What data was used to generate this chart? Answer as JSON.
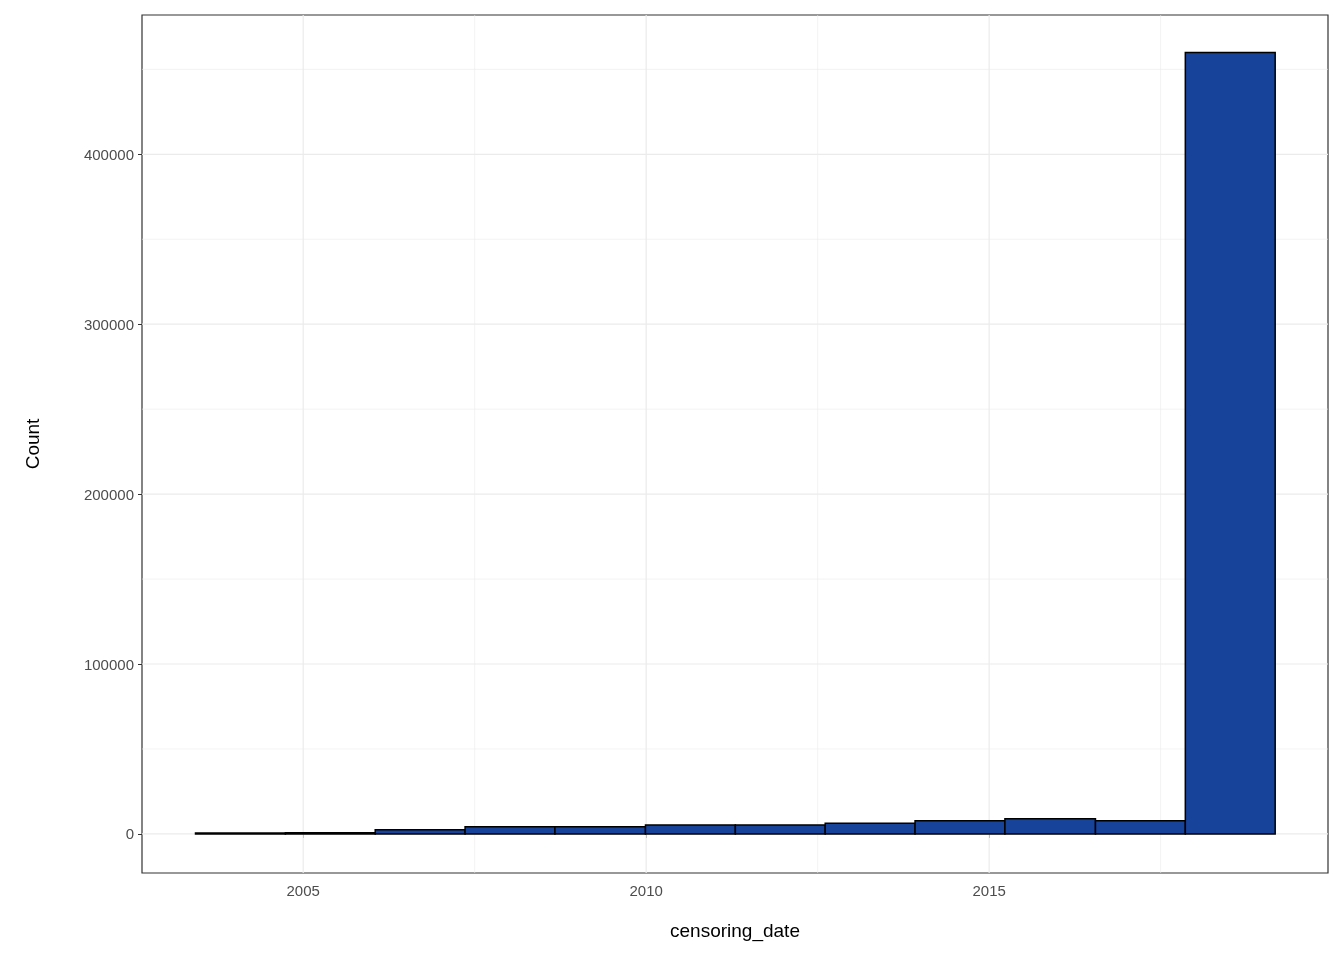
{
  "chart_data": {
    "type": "histogram",
    "xlabel": "censoring_date",
    "ylabel": "Count",
    "bins": [
      2003.43,
      2004.74,
      2006.05,
      2007.36,
      2008.67,
      2009.99,
      2011.3,
      2012.61,
      2013.92,
      2015.23,
      2016.55,
      2017.86,
      2019.17
    ],
    "values": [
      500,
      700,
      2400,
      4200,
      4200,
      5300,
      5300,
      6300,
      7700,
      9000,
      7700,
      460000
    ],
    "color": "#17439b",
    "xlim": [
      2002.65,
      2019.94
    ],
    "xticks": [
      2005,
      2010,
      2015
    ],
    "ylim": [
      -23000,
      482000
    ],
    "yticks": [
      0,
      100000,
      200000,
      300000,
      400000
    ],
    "grid": true
  }
}
